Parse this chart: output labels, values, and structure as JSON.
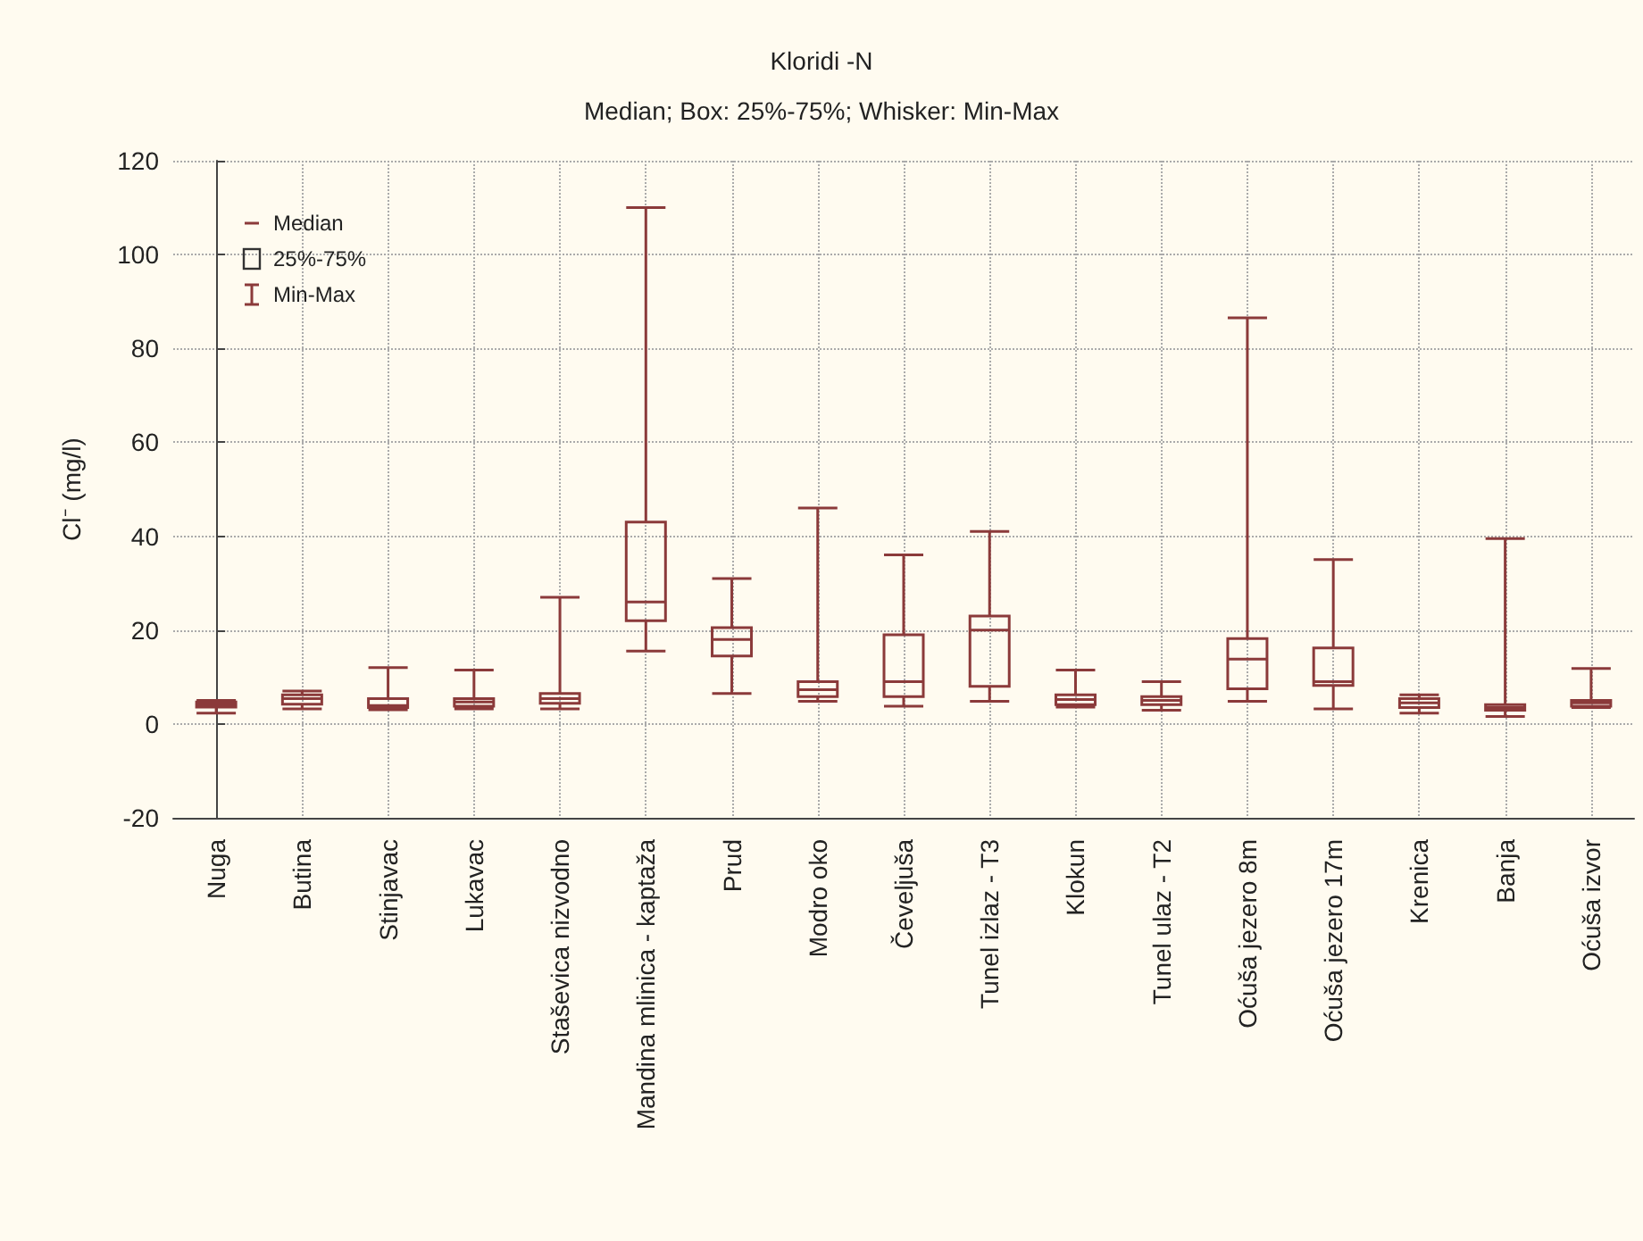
{
  "chart_data": {
    "type": "box",
    "title": "Kloridi -N",
    "subtitle": "Median; Box: 25%-75%; Whisker: Min-Max",
    "ylabel": "Cl⁻ (mg/l)",
    "categories": [
      "Nuga",
      "Butina",
      "Stinjavac",
      "Lukavac",
      "Staševica nizvodno",
      "Mandina mlinica - kaptaža",
      "Prud",
      "Modro oko",
      "Čeveljuša",
      "Tunel izlaz - T3",
      "Klokun",
      "Tunel ulaz - T2",
      "Oćuša jezero 8m",
      "Oćuša jezero 17m",
      "Krenica",
      "Banja",
      "Oćuša izvor"
    ],
    "series": [
      {
        "color": "#8b3a3a",
        "boxes": [
          {
            "low": 2.3,
            "q1": 3.6,
            "median": 4.1,
            "q3": 4.7,
            "high": 5
          },
          {
            "low": 3.2,
            "q1": 4.2,
            "median": 5.4,
            "q3": 6.2,
            "high": 7
          },
          {
            "low": 3.0,
            "q1": 3.5,
            "median": 3.9,
            "q3": 5.4,
            "high": 12
          },
          {
            "low": 3.2,
            "q1": 3.8,
            "median": 4.7,
            "q3": 5.4,
            "high": 11.5
          },
          {
            "low": 3.2,
            "q1": 4.4,
            "median": 5.4,
            "q3": 6.5,
            "high": 27
          },
          {
            "low": 15.5,
            "q1": 22,
            "median": 26,
            "q3": 43,
            "high": 110
          },
          {
            "low": 6.5,
            "q1": 14.5,
            "median": 18,
            "q3": 20.5,
            "high": 31
          },
          {
            "low": 4.8,
            "q1": 5.8,
            "median": 7.3,
            "q3": 9,
            "high": 46
          },
          {
            "low": 3.8,
            "q1": 5.8,
            "median": 9,
            "q3": 19,
            "high": 36
          },
          {
            "low": 4.8,
            "q1": 8,
            "median": 20,
            "q3": 23,
            "high": 41
          },
          {
            "low": 3.6,
            "q1": 4.1,
            "median": 5.2,
            "q3": 6.2,
            "high": 11.5
          },
          {
            "low": 2.9,
            "q1": 4.1,
            "median": 5,
            "q3": 5.8,
            "high": 9
          },
          {
            "low": 4.8,
            "q1": 7.5,
            "median": 13.8,
            "q3": 18.2,
            "high": 86.5
          },
          {
            "low": 3.2,
            "q1": 8.2,
            "median": 9,
            "q3": 16.2,
            "high": 35
          },
          {
            "low": 2.3,
            "q1": 3.5,
            "median": 4.5,
            "q3": 5.4,
            "high": 6.2
          },
          {
            "low": 1.6,
            "q1": 2.9,
            "median": 3.5,
            "q3": 4.1,
            "high": 39.5
          },
          {
            "low": 3.5,
            "q1": 3.8,
            "median": 4.5,
            "q3": 5,
            "high": 11.8
          }
        ]
      }
    ],
    "ylim": [
      -20,
      120
    ],
    "yticks": [
      -20,
      0,
      20,
      40,
      60,
      80,
      100,
      120
    ],
    "grid": true,
    "annotations": [
      "Median",
      "25%-75%",
      "Min-Max"
    ]
  }
}
